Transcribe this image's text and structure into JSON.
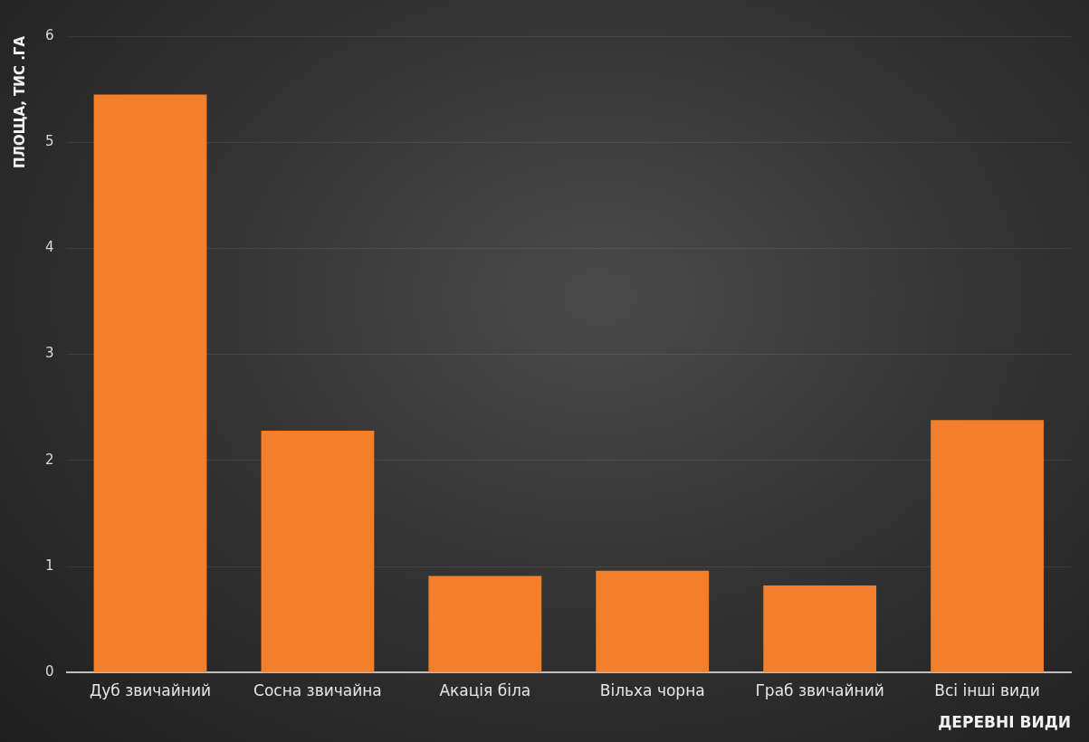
{
  "chart_data": {
    "type": "bar",
    "xlabel": "ДЕРЕВНІ ВИДИ",
    "ylabel": "ПЛОЩА, ТИС .ГА",
    "categories": [
      "Дуб звичайний",
      "Сосна звичайна",
      "Акація біла",
      "Вільха чорна",
      "Граб звичайний",
      "Всі інші види"
    ],
    "values": [
      5.45,
      2.28,
      0.91,
      0.96,
      0.82,
      2.38
    ],
    "color": "#f47f2a",
    "ylim": [
      0,
      6
    ],
    "yticks": [
      0,
      1,
      2,
      3,
      4,
      5,
      6
    ],
    "grid": "y"
  }
}
